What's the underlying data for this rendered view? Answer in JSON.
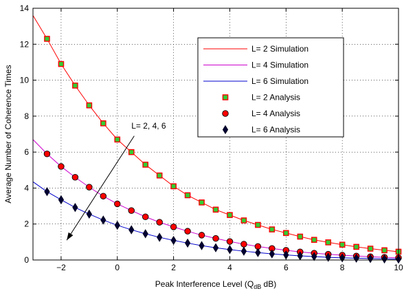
{
  "chart_data": {
    "type": "line",
    "xlabel": "Peak Interference Level (Q",
    "xlabel_sub": "dB",
    "xlabel_suffix": " dB)",
    "ylabel": "Average Number of Coherence Times",
    "xlim": [
      -3,
      10
    ],
    "ylim": [
      0,
      14
    ],
    "x_ticks": [
      -2,
      0,
      2,
      4,
      6,
      8,
      10
    ],
    "y_ticks": [
      0,
      2,
      4,
      6,
      8,
      10,
      12,
      14
    ],
    "grid": true,
    "legend_position": "top-right",
    "annotation": {
      "text": "L= 2, 4, 6",
      "x": 0.5,
      "y": 7.3
    },
    "arrow": {
      "x1": 0.6,
      "y1": 6.9,
      "x2": -1.8,
      "y2": 1.1
    },
    "series": [
      {
        "name": "L= 2 Simulation",
        "style": "line",
        "color": "#ff0000",
        "x": [
          -3,
          -2.5,
          -2,
          -1.5,
          -1,
          -0.5,
          0,
          0.5,
          1,
          1.5,
          2,
          2.5,
          3,
          3.5,
          4,
          4.5,
          5,
          5.5,
          6,
          6.5,
          7,
          7.5,
          8,
          8.5,
          9,
          9.5,
          10
        ],
        "y": [
          13.6,
          12.3,
          10.9,
          9.7,
          8.6,
          7.6,
          6.7,
          6.0,
          5.3,
          4.7,
          4.1,
          3.6,
          3.2,
          2.8,
          2.5,
          2.2,
          1.95,
          1.7,
          1.5,
          1.3,
          1.12,
          0.98,
          0.85,
          0.73,
          0.63,
          0.54,
          0.46
        ]
      },
      {
        "name": "L= 4 Simulation",
        "style": "line",
        "color": "#cc00cc",
        "x": [
          -3,
          -2.5,
          -2,
          -1.5,
          -1,
          -0.5,
          0,
          0.5,
          1,
          1.5,
          2,
          2.5,
          3,
          3.5,
          4,
          4.5,
          5,
          5.5,
          6,
          6.5,
          7,
          7.5,
          8,
          8.5,
          9,
          9.5,
          10
        ],
        "y": [
          6.7,
          5.9,
          5.2,
          4.6,
          4.05,
          3.55,
          3.12,
          2.75,
          2.4,
          2.1,
          1.84,
          1.6,
          1.38,
          1.2,
          1.03,
          0.88,
          0.75,
          0.64,
          0.54,
          0.45,
          0.38,
          0.32,
          0.27,
          0.22,
          0.18,
          0.15,
          0.12
        ]
      },
      {
        "name": "L= 6 Simulation",
        "style": "line",
        "color": "#0000cc",
        "x": [
          -3,
          -2.5,
          -2,
          -1.5,
          -1,
          -0.5,
          0,
          0.5,
          1,
          1.5,
          2,
          2.5,
          3,
          3.5,
          4,
          4.5,
          5,
          5.5,
          6,
          6.5,
          7,
          7.5,
          8,
          8.5,
          9,
          9.5,
          10
        ],
        "y": [
          4.35,
          3.8,
          3.35,
          2.92,
          2.55,
          2.22,
          1.93,
          1.68,
          1.46,
          1.26,
          1.09,
          0.94,
          0.8,
          0.68,
          0.58,
          0.49,
          0.41,
          0.34,
          0.28,
          0.23,
          0.19,
          0.15,
          0.12,
          0.1,
          0.08,
          0.06,
          0.05
        ]
      },
      {
        "name": "L= 2 Analysis",
        "style": "marker",
        "marker": "square",
        "color": "#ff0000",
        "fill": "#33cc33",
        "x": [
          -2.5,
          -2,
          -1.5,
          -1,
          -0.5,
          0,
          0.5,
          1,
          1.5,
          2,
          2.5,
          3,
          3.5,
          4,
          4.5,
          5,
          5.5,
          6,
          6.5,
          7,
          7.5,
          8,
          8.5,
          9,
          9.5,
          10
        ],
        "y": [
          12.3,
          10.9,
          9.7,
          8.6,
          7.6,
          6.7,
          6.0,
          5.3,
          4.7,
          4.1,
          3.6,
          3.2,
          2.8,
          2.5,
          2.2,
          1.95,
          1.7,
          1.5,
          1.3,
          1.12,
          0.98,
          0.85,
          0.73,
          0.63,
          0.54,
          0.46
        ]
      },
      {
        "name": "L= 4 Analysis",
        "style": "marker",
        "marker": "circle",
        "color": "#000000",
        "fill": "#ff0000",
        "x": [
          -2.5,
          -2,
          -1.5,
          -1,
          -0.5,
          0,
          0.5,
          1,
          1.5,
          2,
          2.5,
          3,
          3.5,
          4,
          4.5,
          5,
          5.5,
          6,
          6.5,
          7,
          7.5,
          8,
          8.5,
          9,
          9.5,
          10
        ],
        "y": [
          5.9,
          5.2,
          4.6,
          4.05,
          3.55,
          3.12,
          2.75,
          2.4,
          2.1,
          1.84,
          1.6,
          1.38,
          1.2,
          1.03,
          0.88,
          0.75,
          0.64,
          0.54,
          0.45,
          0.38,
          0.32,
          0.27,
          0.22,
          0.18,
          0.15,
          0.12
        ]
      },
      {
        "name": "L= 6 Analysis",
        "style": "marker",
        "marker": "diamond",
        "color": "#000020",
        "fill": "#000033",
        "x": [
          -2.5,
          -2,
          -1.5,
          -1,
          -0.5,
          0,
          0.5,
          1,
          1.5,
          2,
          2.5,
          3,
          3.5,
          4,
          4.5,
          5,
          5.5,
          6,
          6.5,
          7,
          7.5,
          8,
          8.5,
          9,
          9.5,
          10
        ],
        "y": [
          3.8,
          3.35,
          2.92,
          2.55,
          2.22,
          1.93,
          1.68,
          1.46,
          1.26,
          1.09,
          0.94,
          0.8,
          0.68,
          0.58,
          0.49,
          0.41,
          0.34,
          0.28,
          0.23,
          0.19,
          0.15,
          0.12,
          0.1,
          0.08,
          0.06,
          0.05
        ]
      }
    ]
  }
}
